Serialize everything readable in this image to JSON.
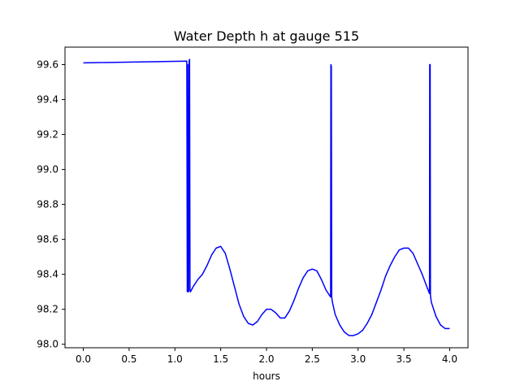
{
  "chart_data": {
    "type": "line",
    "title": "Water Depth h at gauge 515",
    "xlabel": "hours",
    "ylabel": "",
    "xlim": [
      -0.2,
      4.2
    ],
    "ylim": [
      97.98,
      99.7
    ],
    "xticks": [
      0.0,
      0.5,
      1.0,
      1.5,
      2.0,
      2.5,
      3.0,
      3.5,
      4.0
    ],
    "xtick_labels": [
      "0.0",
      "0.5",
      "1.0",
      "1.5",
      "2.0",
      "2.5",
      "3.0",
      "3.5",
      "4.0"
    ],
    "yticks": [
      98.0,
      98.2,
      98.4,
      98.6,
      98.8,
      99.0,
      99.2,
      99.4,
      99.6
    ],
    "ytick_labels": [
      "98.0",
      "98.2",
      "98.4",
      "98.6",
      "98.8",
      "99.0",
      "99.2",
      "99.4",
      "99.6"
    ],
    "grid": false,
    "line_color": "#0000ff",
    "series": [
      {
        "x": [
          0.0,
          1.13,
          1.135,
          1.14,
          1.145,
          1.15,
          1.155,
          1.16,
          1.165,
          1.17,
          1.2,
          1.25,
          1.3,
          1.35,
          1.4,
          1.45,
          1.5,
          1.55,
          1.6,
          1.65,
          1.7,
          1.75,
          1.8,
          1.85,
          1.9,
          1.95,
          2.0,
          2.05,
          2.1,
          2.15,
          2.2,
          2.25,
          2.3,
          2.35,
          2.4,
          2.45,
          2.5,
          2.55,
          2.6,
          2.65,
          2.7,
          2.703,
          2.708,
          2.712,
          2.72,
          2.75,
          2.8,
          2.85,
          2.9,
          2.95,
          3.0,
          3.05,
          3.1,
          3.15,
          3.2,
          3.25,
          3.3,
          3.35,
          3.4,
          3.45,
          3.5,
          3.55,
          3.6,
          3.65,
          3.7,
          3.75,
          3.78,
          3.782,
          3.787,
          3.79,
          3.8,
          3.85,
          3.9,
          3.95,
          3.98,
          4.0
        ],
        "y": [
          99.61,
          99.62,
          98.3,
          99.6,
          98.31,
          98.3,
          99.62,
          99.63,
          98.31,
          98.3,
          98.33,
          98.37,
          98.4,
          98.45,
          98.51,
          98.55,
          98.56,
          98.52,
          98.43,
          98.33,
          98.23,
          98.16,
          98.12,
          98.11,
          98.13,
          98.17,
          98.2,
          98.2,
          98.18,
          98.15,
          98.15,
          98.19,
          98.25,
          98.32,
          98.38,
          98.42,
          98.43,
          98.42,
          98.37,
          98.31,
          98.27,
          99.6,
          99.59,
          98.27,
          98.24,
          98.17,
          98.11,
          98.07,
          98.05,
          98.05,
          98.06,
          98.08,
          98.12,
          98.17,
          98.24,
          98.31,
          98.39,
          98.45,
          98.5,
          98.54,
          98.55,
          98.55,
          98.52,
          98.46,
          98.4,
          98.33,
          98.29,
          99.6,
          99.6,
          98.28,
          98.24,
          98.16,
          98.11,
          98.09,
          98.09,
          98.09
        ]
      }
    ]
  }
}
